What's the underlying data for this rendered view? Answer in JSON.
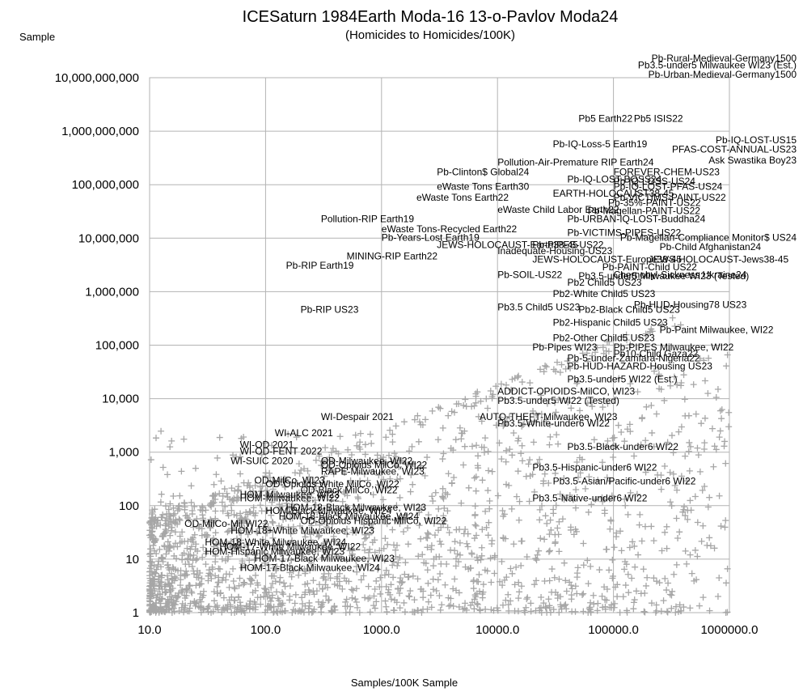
{
  "chart_data": {
    "type": "scatter",
    "title": "ICESaturn 1984Earth Moda-16 13-o-Pavlov Moda24",
    "subtitle": "(Homicides to Homicides/100K)",
    "ylabel": "Sample",
    "xlabel": "Samples/100K Sample",
    "x_scale": "log",
    "y_scale": "log",
    "xlim": [
      10,
      1000000
    ],
    "ylim": [
      1,
      10000000000
    ],
    "grid": true,
    "marker": "plus",
    "marker_color": "#a6a6a6",
    "x_ticks": [
      "10.0",
      "100.0",
      "1000.0",
      "10000.0",
      "100000.0",
      "1000000.0"
    ],
    "y_ticks": [
      "1",
      "10",
      "100",
      "1,000",
      "10,000",
      "100,000",
      "1,000,000",
      "10,000,000",
      "100,000,000",
      "1,000,000,000",
      "10,000,000,000"
    ],
    "annotations": [
      {
        "text": "Pb-Rural-Medieval-Germany1500",
        "x": 250000,
        "y": 20000000000
      },
      {
        "text": "Pb3.5-under5 Milwaukee WI23 (Est.)",
        "x": 250000,
        "y": 15000000000
      },
      {
        "text": "Pb-Urban-Medieval-Germany1500",
        "x": 500000,
        "y": 10000000000
      },
      {
        "text": "Pb5 Earth22",
        "x": 50000,
        "y": 1500000000
      },
      {
        "text": "Pb5 ISIS22",
        "x": 150000,
        "y": 1500000000
      },
      {
        "text": "Pb-IQ-LOST-US15",
        "x": 2000000,
        "y": 600000000
      },
      {
        "text": "Pb-IQ-Loss-5 Earth19",
        "x": 30000,
        "y": 500000000
      },
      {
        "text": "PFAS-COST-ANNUAL-US23",
        "x": 1000000,
        "y": 400000000
      },
      {
        "text": "Ask Swastika Boy23",
        "x": 1000000,
        "y": 250000000
      },
      {
        "text": "Pollution-Air-Premature RIP Earth24",
        "x": 10000,
        "y": 230000000
      },
      {
        "text": "Pb-Clinton$ Global24",
        "x": 3000,
        "y": 150000000
      },
      {
        "text": "FOREVER-CHEM-US23",
        "x": 100000,
        "y": 150000000
      },
      {
        "text": "Pb-IQ-LOST-BOSS24",
        "x": 40000,
        "y": 110000000
      },
      {
        "text": "Pb-IQ-LOSS-US24",
        "x": 100000,
        "y": 100000000
      },
      {
        "text": "Pb-IQ-LOST-PFAS-US24",
        "x": 100000,
        "y": 80000000
      },
      {
        "text": "eWaste Tons Earth30",
        "x": 3000,
        "y": 80000000
      },
      {
        "text": "EARTH-HOLOCAUST38-45",
        "x": 30000,
        "y": 60000000
      },
      {
        "text": "eWaste Tons Earth22",
        "x": 2000,
        "y": 50000000
      },
      {
        "text": "Pb-VICTIMS-PAINT-US22",
        "x": 100000,
        "y": 50000000
      },
      {
        "text": "Pb-35%-PAINT-US22",
        "x": 90000,
        "y": 40000000
      },
      {
        "text": "eWaste Child Labor Earth22",
        "x": 10000,
        "y": 30000000
      },
      {
        "text": "Pb-Magellan-PAINT-US22",
        "x": 60000,
        "y": 28000000
      },
      {
        "text": "Pb-URBAN-IQ-LOST-Buddha24",
        "x": 40000,
        "y": 20000000
      },
      {
        "text": "Pollution-RIP Earth19",
        "x": 300,
        "y": 20000000
      },
      {
        "text": "eWaste Tons-Recycled Earth22",
        "x": 1000,
        "y": 13000000
      },
      {
        "text": "Pb-VICTIMS-PIPES-US22",
        "x": 40000,
        "y": 11000000
      },
      {
        "text": "Pb-Years-Lost Earth19",
        "x": 1000,
        "y": 9000000
      },
      {
        "text": "Pb-Magellan-Compliance Monitor$ US24",
        "x": 500000,
        "y": 9000000
      },
      {
        "text": "JEWS-HOLOCAUST-Earth38-45",
        "x": 3000,
        "y": 6500000
      },
      {
        "text": "Pb-PIPES-US22",
        "x": 20000,
        "y": 6500000
      },
      {
        "text": "Pb-Child Afghanistan24",
        "x": 250000,
        "y": 6000000
      },
      {
        "text": "Inadequate-Housing-US23",
        "x": 10000,
        "y": 5000000
      },
      {
        "text": "MINING-RIP Earth22",
        "x": 500,
        "y": 4000000
      },
      {
        "text": "JEWS-HOLOCAUST-Europe38-45",
        "x": 20000,
        "y": 3500000
      },
      {
        "text": "JEWS-HOLOCAUST-Jews38-45",
        "x": 200000,
        "y": 3500000
      },
      {
        "text": "Pb-RIP Earth19",
        "x": 150,
        "y": 2700000
      },
      {
        "text": "Pb-PAINT-Child US22",
        "x": 80000,
        "y": 2500000
      },
      {
        "text": "Pb-SOIL-US22",
        "x": 10000,
        "y": 1800000
      },
      {
        "text": "Chernobyl-Sickness Ukraine24",
        "x": 100000,
        "y": 1800000
      },
      {
        "text": "Pb2 Child5 US23",
        "x": 40000,
        "y": 1300000
      },
      {
        "text": "Pb2-White Child5 US23",
        "x": 30000,
        "y": 800000
      },
      {
        "text": "Pb-HUD-Housing78 US23",
        "x": 150000,
        "y": 500000
      },
      {
        "text": "Pb3.5 Child5 US23",
        "x": 10000,
        "y": 450000
      },
      {
        "text": "Pb2-Black Child5 US23",
        "x": 50000,
        "y": 400000
      },
      {
        "text": "Pb-RIP US23",
        "x": 200,
        "y": 400000
      },
      {
        "text": "Pb2-Hispanic Child5 US23",
        "x": 30000,
        "y": 230000
      },
      {
        "text": "Pb-Paint Milwaukee, WI22",
        "x": 250000,
        "y": 170000
      },
      {
        "text": "Pb2-Other Child5 US23",
        "x": 30000,
        "y": 120000
      },
      {
        "text": "Pb-Pipes WI23",
        "x": 20000,
        "y": 80000
      },
      {
        "text": "Pb-PIPES Milwaukee, WI22",
        "x": 100000,
        "y": 80000
      },
      {
        "text": "Pb10-Child Gaza22",
        "x": 100000,
        "y": 60000
      },
      {
        "text": "Pb-5-under-Zamfara-Nigeria22",
        "x": 40000,
        "y": 50000
      },
      {
        "text": "Pb-HUD-HAZARD-Housing US23",
        "x": 40000,
        "y": 35000
      },
      {
        "text": "Pb3.5-under5 WI22 (Est.)",
        "x": 40000,
        "y": 20000
      },
      {
        "text": "ADDICT-OPIOIDS-MilCO, WI23",
        "x": 10000,
        "y": 12000
      },
      {
        "text": "Pb3.5-under5 WI22 (Tested)",
        "x": 10000,
        "y": 8000
      },
      {
        "text": "WI-Despair 2021",
        "x": 300,
        "y": 4000
      },
      {
        "text": "AUTO-THEFT-Milwaukee, WI23",
        "x": 7000,
        "y": 4000
      },
      {
        "text": "Pb3.5-White-under6 WI22",
        "x": 10000,
        "y": 3000
      },
      {
        "text": "WI-ALC 2021",
        "x": 120,
        "y": 2000
      },
      {
        "text": "Pb3.5-under5 Milwaukee WI23 (Tested)",
        "x": 50000,
        "y": 1700000
      },
      {
        "text": "Pb3.5-Black-under6 WI22",
        "x": 40000,
        "y": 1100
      },
      {
        "text": "WI-OD 2021",
        "x": 60,
        "y": 1200
      },
      {
        "text": "WI-OD-FENT 2022",
        "x": 60,
        "y": 900
      },
      {
        "text": "WI-SUIC 2020",
        "x": 50,
        "y": 600
      },
      {
        "text": "OD-Milwaukee, WI22",
        "x": 300,
        "y": 600
      },
      {
        "text": "OD-Opioids MilCo, WI22",
        "x": 300,
        "y": 500
      },
      {
        "text": "RAPE-Milwaukee, WI23",
        "x": 300,
        "y": 380
      },
      {
        "text": "Pb3.5-Hispanic-under6 WI22",
        "x": 20000,
        "y": 450
      },
      {
        "text": "Pb3.5-Asian/Pacific-under6 WI22",
        "x": 30000,
        "y": 250
      },
      {
        "text": "OD-MilCo, WI23",
        "x": 80,
        "y": 260
      },
      {
        "text": "OD-Opioids White MilCo, WI22",
        "x": 100,
        "y": 220
      },
      {
        "text": "OD-Black MilCo, WI22",
        "x": 200,
        "y": 170
      },
      {
        "text": "HOM-Milwaukee, WI23",
        "x": 60,
        "y": 140
      },
      {
        "text": "HOM-Milwaukee, WI22",
        "x": 60,
        "y": 120
      },
      {
        "text": "Pb3.5-Native-under6 WI22",
        "x": 20000,
        "y": 120
      },
      {
        "text": "HOM-18-Black Milwaukee, WI23",
        "x": 150,
        "y": 80
      },
      {
        "text": "HOM-Black Milwaukee, WI24",
        "x": 100,
        "y": 70
      },
      {
        "text": "HOM-18-Black Milwaukee, WI24",
        "x": 130,
        "y": 55
      },
      {
        "text": "OD-Opioids Hispanic MilCo, WI22",
        "x": 200,
        "y": 45
      },
      {
        "text": "OD-MilCo-Mil WI22",
        "x": 20,
        "y": 40
      },
      {
        "text": "HOM-18+White Milwaukee, WI23",
        "x": 50,
        "y": 30
      },
      {
        "text": "HOM-18-White Milwaukee, WI24",
        "x": 30,
        "y": 18
      },
      {
        "text": "HOM-17-White Milwaukee, WI22",
        "x": 40,
        "y": 15
      },
      {
        "text": "HOM-Hispanic Milwaukee, WI23",
        "x": 30,
        "y": 12
      },
      {
        "text": "HOM-17-Black Milwaukee, WI23",
        "x": 80,
        "y": 9
      },
      {
        "text": "HOM-17-Black Milwaukee, WI24",
        "x": 60,
        "y": 6
      }
    ]
  }
}
